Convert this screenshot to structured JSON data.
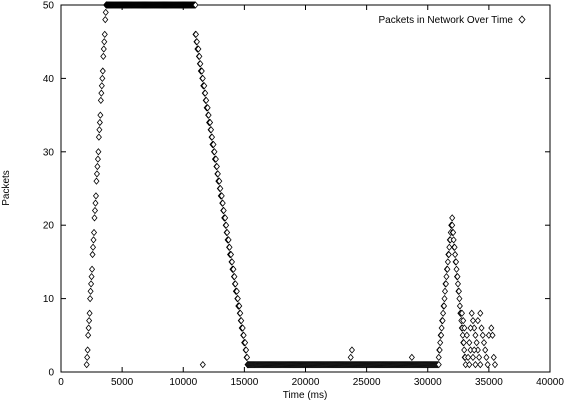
{
  "chart_data": {
    "type": "scatter",
    "title": "",
    "xlabel": "Time (ms)",
    "ylabel": "Packets",
    "xlim": [
      0,
      40000
    ],
    "ylim": [
      0,
      50
    ],
    "xticks": [
      0,
      5000,
      10000,
      15000,
      20000,
      25000,
      30000,
      35000,
      40000
    ],
    "yticks": [
      0,
      10,
      20,
      30,
      40,
      50
    ],
    "grid": false,
    "legend_position": "top-right",
    "series": [
      {
        "name": "Packets in Network Over Time",
        "marker": "diamond",
        "color": "#000000",
        "segments": [
          {
            "x_start": 2100,
            "x_end": 3700,
            "y_start": 1,
            "y_end": 50,
            "step": 40
          },
          {
            "x_start": 3700,
            "x_end": 11000,
            "y_start": 50,
            "y_end": 50,
            "step": 40
          },
          {
            "x_start": 11000,
            "x_end": 15300,
            "y_start": 46,
            "y_end": 1,
            "step": 40
          },
          {
            "x_start": 15300,
            "x_end": 30900,
            "y_start": 1,
            "y_end": 1,
            "step": 80
          },
          {
            "x_start": 30900,
            "x_end": 32000,
            "y_start": 2,
            "y_end": 21,
            "step": 40
          },
          {
            "x_start": 32000,
            "x_end": 33100,
            "y_start": 20,
            "y_end": 1,
            "step": 40
          }
        ],
        "points": [
          {
            "x": 11600,
            "y": 1
          },
          {
            "x": 23700,
            "y": 2
          },
          {
            "x": 23800,
            "y": 3
          },
          {
            "x": 28700,
            "y": 2
          },
          {
            "x": 32800,
            "y": 8
          },
          {
            "x": 32900,
            "y": 7
          },
          {
            "x": 33000,
            "y": 6
          },
          {
            "x": 33200,
            "y": 5
          },
          {
            "x": 33400,
            "y": 4
          },
          {
            "x": 33500,
            "y": 3
          },
          {
            "x": 33600,
            "y": 8
          },
          {
            "x": 33700,
            "y": 7
          },
          {
            "x": 33800,
            "y": 6
          },
          {
            "x": 33900,
            "y": 5
          },
          {
            "x": 34000,
            "y": 4
          },
          {
            "x": 34100,
            "y": 3
          },
          {
            "x": 34200,
            "y": 2
          },
          {
            "x": 34300,
            "y": 8
          },
          {
            "x": 34400,
            "y": 6
          },
          {
            "x": 34500,
            "y": 5
          },
          {
            "x": 34600,
            "y": 4
          },
          {
            "x": 34700,
            "y": 3
          },
          {
            "x": 34800,
            "y": 2
          },
          {
            "x": 34900,
            "y": 1
          },
          {
            "x": 35000,
            "y": 5
          },
          {
            "x": 35200,
            "y": 6
          },
          {
            "x": 35300,
            "y": 5
          },
          {
            "x": 35400,
            "y": 2
          },
          {
            "x": 35500,
            "y": 1
          },
          {
            "x": 33300,
            "y": 2
          },
          {
            "x": 33400,
            "y": 1
          },
          {
            "x": 33700,
            "y": 2
          },
          {
            "x": 33900,
            "y": 1
          },
          {
            "x": 34300,
            "y": 1
          },
          {
            "x": 34100,
            "y": 7
          },
          {
            "x": 33500,
            "y": 6
          },
          {
            "x": 33800,
            "y": 3
          }
        ]
      }
    ]
  }
}
